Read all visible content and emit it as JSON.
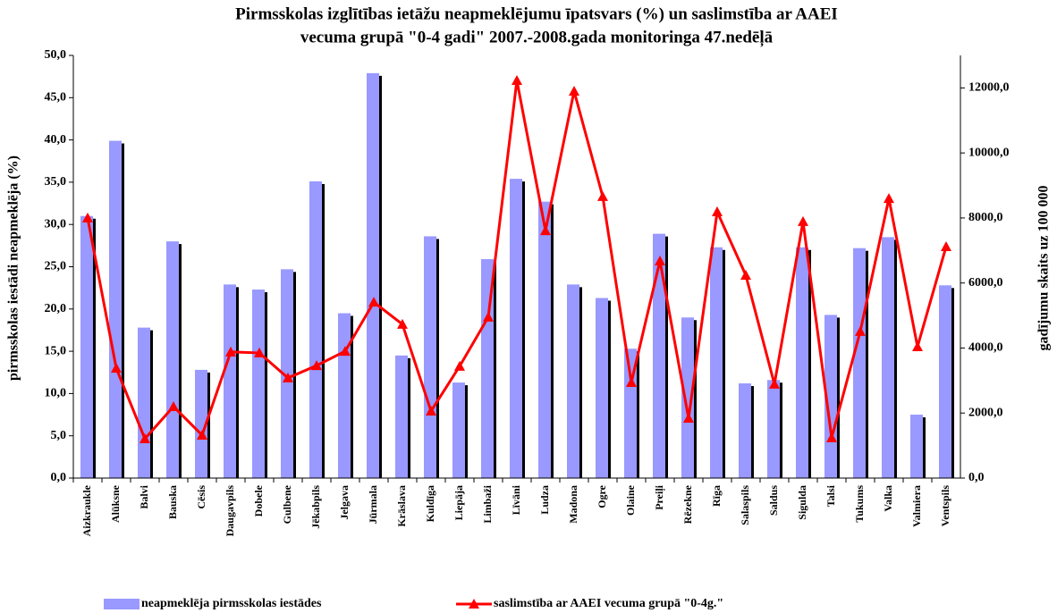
{
  "chart_data": {
    "type": "bar_line",
    "title": [
      "Pirmsskolas izglītības ietāžu neapmeklējumu īpatsvars (%) un saslimstība ar AAEI",
      "vecuma grupā \"0-4 gadi\" 2007.-2008.gada monitoringa 47.nedēļā"
    ],
    "ylabel": "pirmsskolas iestādi neapmeklēja (%)",
    "y2label": "gadījumu skaits uz 100 000",
    "categories": [
      "Aizkraukle",
      "Alūksne",
      "Balvi",
      "Bauska",
      "Cēsis",
      "Daugavpils",
      "Dobele",
      "Gulbene",
      "Jēkabpils",
      "Jelgava",
      "Jūrmala",
      "Krāslava",
      "Kuldīga",
      "Liepāja",
      "Limbaži",
      "Līvāni",
      "Ludza",
      "Madona",
      "Ogre",
      "Olaine",
      "Preiļi",
      "Rēzekne",
      "Rīga",
      "Salaspils",
      "Saldus",
      "Sigulda",
      "Talsi",
      "Tukums",
      "Valka",
      "Valmiera",
      "Ventspils"
    ],
    "series": [
      {
        "name": "neapmeklēja pirmsskolas iestādes",
        "type": "bar",
        "color": "#9999ff",
        "values": [
          31.0,
          39.9,
          17.8,
          28.0,
          12.8,
          22.9,
          22.3,
          24.7,
          35.1,
          19.5,
          47.9,
          14.5,
          28.6,
          11.3,
          25.9,
          35.4,
          32.7,
          22.9,
          21.3,
          15.3,
          28.9,
          19.0,
          27.3,
          11.2,
          11.6,
          27.3,
          19.3,
          27.2,
          28.5,
          7.5,
          22.8
        ]
      },
      {
        "name": "saslimstība ar AAEI vecuma grupā \"0-4g.\"",
        "type": "line",
        "axis": "y2",
        "color": "#ff0000",
        "values": [
          8000,
          3380,
          1210,
          2200,
          1320,
          3880,
          3850,
          3080,
          3460,
          3900,
          5410,
          4730,
          2060,
          3440,
          4950,
          12230,
          7610,
          11900,
          8660,
          2940,
          6680,
          1840,
          8190,
          6240,
          2890,
          7890,
          1240,
          4510,
          8600,
          4040,
          7120
        ]
      }
    ],
    "ylim": [
      0,
      50
    ],
    "yticks": [
      {
        "value": 0,
        "label": "0,0"
      },
      {
        "value": 5,
        "label": "5,0"
      },
      {
        "value": 10,
        "label": "10,0"
      },
      {
        "value": 15,
        "label": "15,0"
      },
      {
        "value": 20,
        "label": "20,0"
      },
      {
        "value": 25,
        "label": "25,0"
      },
      {
        "value": 30,
        "label": "30,0"
      },
      {
        "value": 35,
        "label": "35,0"
      },
      {
        "value": 40,
        "label": "40,0"
      },
      {
        "value": 45,
        "label": "45,0"
      },
      {
        "value": 50,
        "label": "50,0"
      }
    ],
    "y2lim": [
      0,
      13000
    ],
    "y2ticks": [
      {
        "value": 0,
        "label": "0,0"
      },
      {
        "value": 2000,
        "label": "2000,0"
      },
      {
        "value": 4000,
        "label": "4000,0"
      },
      {
        "value": 6000,
        "label": "6000,0"
      },
      {
        "value": 8000,
        "label": "8000,0"
      },
      {
        "value": 10000,
        "label": "10000,0"
      },
      {
        "value": 12000,
        "label": "12000,0"
      }
    ],
    "legend": "bottom"
  }
}
